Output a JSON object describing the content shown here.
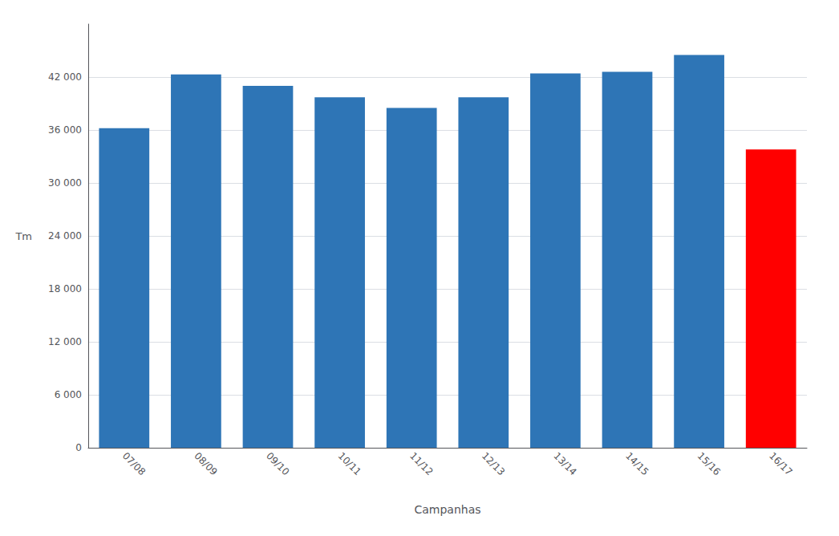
{
  "chart_data": {
    "type": "bar",
    "categories": [
      "07/08",
      "08/09",
      "09/10",
      "10/11",
      "11/12",
      "12/13",
      "13/14",
      "14/15",
      "15/16",
      "16/17"
    ],
    "values": [
      36200,
      42300,
      41000,
      39700,
      38500,
      39700,
      42400,
      42600,
      44500,
      33800
    ],
    "colors": [
      "#2e75b6",
      "#2e75b6",
      "#2e75b6",
      "#2e75b6",
      "#2e75b6",
      "#2e75b6",
      "#2e75b6",
      "#2e75b6",
      "#2e75b6",
      "#ff0000"
    ],
    "xlabel": "Campanhas",
    "ylabel": "Tm",
    "ylim": [
      0,
      48000
    ],
    "yticks": [
      0,
      {
        "value": 6000,
        "label": "6 000"
      },
      {
        "value": 12000,
        "label": "12 000"
      },
      {
        "value": 18000,
        "label": "18 000"
      },
      {
        "value": 24000,
        "label": "24 000"
      },
      {
        "value": 30000,
        "label": "30 000"
      },
      {
        "value": 36000,
        "label": "36 000"
      },
      {
        "value": 42000,
        "label": "42 000"
      }
    ],
    "grid": true
  }
}
